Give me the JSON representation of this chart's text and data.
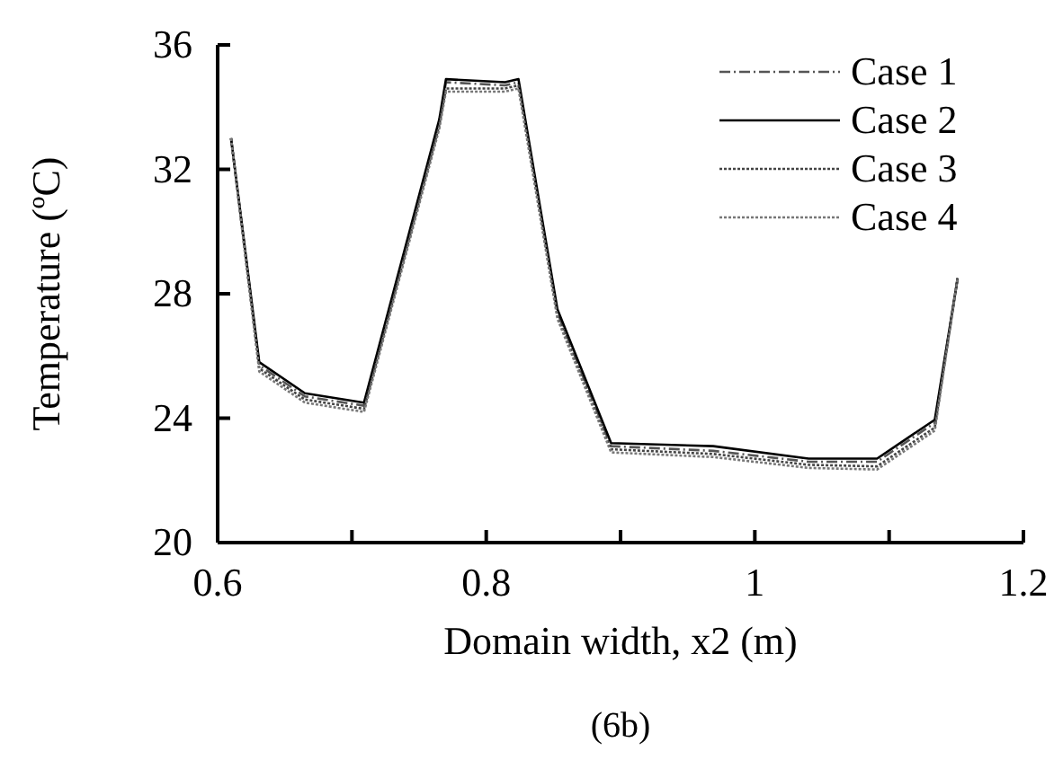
{
  "chart_data": {
    "type": "line",
    "xlabel": "Domain width, x2 (m)",
    "ylabel": "Temperature (ºC)",
    "annotations": [
      "(6b)"
    ],
    "xlim": [
      0.6,
      1.2
    ],
    "ylim": [
      20,
      36
    ],
    "xticks": [
      0.6,
      {
        "value": 0.7,
        "label": null
      },
      0.8,
      {
        "value": 0.9,
        "label": null
      },
      {
        "value": 1,
        "label": "1"
      },
      {
        "value": 1.1,
        "label": null
      },
      1.2
    ],
    "yticks": [
      20,
      24,
      28,
      32,
      36
    ],
    "grid": false,
    "legend": "top right",
    "marker": "none",
    "x": [
      0.61,
      0.631,
      0.665,
      0.709,
      0.765,
      0.77,
      0.814,
      0.824,
      0.853,
      0.893,
      0.969,
      1.04,
      1.091,
      1.134,
      1.151
    ],
    "series": [
      {
        "name": "Case 1",
        "color": "#555555",
        "line_style": "dashed",
        "values": [
          33.0,
          25.7,
          24.7,
          24.4,
          33.5,
          34.8,
          34.7,
          34.8,
          27.4,
          23.1,
          22.95,
          22.6,
          22.6,
          23.85,
          28.5
        ]
      },
      {
        "name": "Case 2",
        "color": "#000000",
        "line_style": "solid",
        "values": [
          33.0,
          25.8,
          24.8,
          24.5,
          33.6,
          34.9,
          34.8,
          34.9,
          27.5,
          23.2,
          23.1,
          22.7,
          22.7,
          23.95,
          28.5
        ]
      },
      {
        "name": "Case 3",
        "color": "#444444",
        "line_style": "dotted",
        "values": [
          33.0,
          25.6,
          24.6,
          24.3,
          33.4,
          34.6,
          34.6,
          34.7,
          27.3,
          23.0,
          22.85,
          22.5,
          22.45,
          23.7,
          28.5
        ]
      },
      {
        "name": "Case 4",
        "color": "#777777",
        "line_style": "dotted",
        "values": [
          33.0,
          25.5,
          24.5,
          24.2,
          33.3,
          34.5,
          34.5,
          34.6,
          27.2,
          22.9,
          22.75,
          22.4,
          22.35,
          23.6,
          28.5
        ]
      }
    ]
  }
}
